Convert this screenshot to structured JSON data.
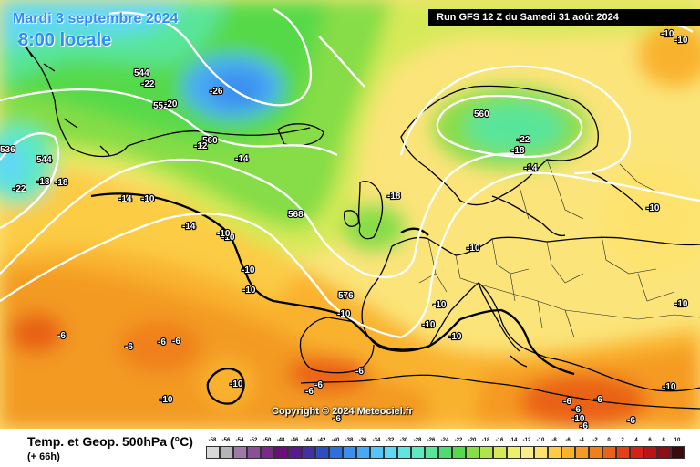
{
  "header": {
    "date_title": "Mardi 3 septembre 2024",
    "time_title": "8:00 locale",
    "run_banner": "Run GFS 12 Z du Samedi 31 août 2024"
  },
  "copyright": "Copyright © 2024 Meteociel.fr",
  "footer": {
    "variable_title": "Temp. et Geop. 500hPa (°C)",
    "lead_time": "(+ 66h)"
  },
  "scale": {
    "labels": [
      "-58",
      "-56",
      "-54",
      "-52",
      "-50",
      "-48",
      "-46",
      "-44",
      "-42",
      "-40",
      "-38",
      "-36",
      "-34",
      "-32",
      "-30",
      "-28",
      "-26",
      "-24",
      "-22",
      "-20",
      "-18",
      "-16",
      "-14",
      "-12",
      "-10",
      "-8",
      "-6",
      "-4",
      "-2",
      "0",
      "2",
      "4",
      "6",
      "8",
      "10"
    ],
    "colors": [
      "#d9d9d9",
      "#b5b5b5",
      "#a07aa8",
      "#8a4f98",
      "#7a2a86",
      "#6a0f7a",
      "#5a1a8e",
      "#4430a5",
      "#2e4ec0",
      "#2f6fe0",
      "#3a8ff0",
      "#48aaf5",
      "#55c4f7",
      "#61d8f4",
      "#62e4df",
      "#5ee9c0",
      "#58e59a",
      "#4fdb73",
      "#56d94a",
      "#86dd46",
      "#b2e34c",
      "#d6ea58",
      "#eef06c",
      "#fbee8a",
      "#fde36e",
      "#fccc45",
      "#f9b22e",
      "#f59a22",
      "#f0801a",
      "#ea6217",
      "#e24016",
      "#d52215",
      "#b8141a",
      "#8c0c18",
      "#3a0a0c"
    ]
  },
  "map": {
    "geopotential_labels": [
      "544",
      "552",
      "560",
      "568",
      "576",
      "536",
      "544",
      "560"
    ],
    "temperature_labels": [
      "-22",
      "-26",
      "-20",
      "-12",
      "-14",
      "-18",
      "-22",
      "-18",
      "-14",
      "-18",
      "-22",
      "-18",
      "-14",
      "-10",
      "-14",
      "-10",
      "-10",
      "-10",
      "-10",
      "-10",
      "-10",
      "-10",
      "-10",
      "-10",
      "-10",
      "-10",
      "-10",
      "-10",
      "-10",
      "-10",
      "-6",
      "-6",
      "-6",
      "-6",
      "-6",
      "-6",
      "-6",
      "-6",
      "-6",
      "-6",
      "-6",
      "-6",
      "-6",
      "-10",
      "-10"
    ]
  }
}
